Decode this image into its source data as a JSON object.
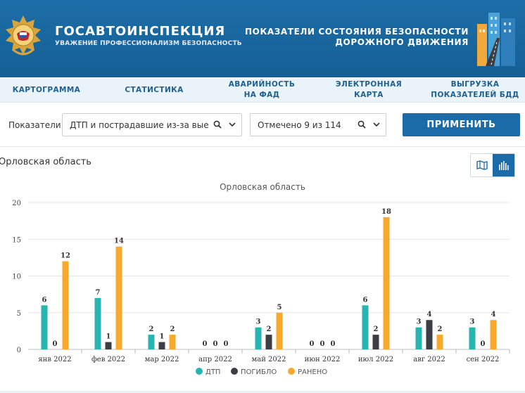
{
  "header": {
    "brand_title": "ГОСАВТОИНСПЕКЦИЯ",
    "brand_subtitle": "УВАЖЕНИЕ ПРОФЕССИОНАЛИЗМ БЕЗОПАСНОСТЬ",
    "right_line1": "ПОКАЗАТЕЛИ СОСТОЯНИЯ БЕЗОПАСНОСТИ",
    "right_line2": "ДОРОЖНОГО ДВИЖЕНИЯ"
  },
  "nav": {
    "items": [
      {
        "line1": "КАРТОГРАММА",
        "line2": ""
      },
      {
        "line1": "СТАТИСТИКА",
        "line2": ""
      },
      {
        "line1": "АВАРИЙНОСТЬ",
        "line2": "НА ФАД"
      },
      {
        "line1": "ЭЛЕКТРОННАЯ",
        "line2": "КАРТА"
      },
      {
        "line1": "ВЫГРУЗКА",
        "line2": "ПОКАЗАТЕЛЕЙ БДД"
      }
    ]
  },
  "filters": {
    "label": "Показатели",
    "indicator_value": "ДТП и пострадавшие из-за выезд...",
    "marked_value": "Отмечено 9 из 114",
    "apply_label": "ПРИМЕНИТЬ"
  },
  "region_label": "Орловская область",
  "colors": {
    "header_bg": "#1a679f",
    "accent": "#1a6ba8",
    "dtp": "#26b5b0",
    "killed": "#3b3f45",
    "injured": "#f8a82a"
  },
  "chart_data": {
    "type": "bar",
    "title": "Орловская область",
    "categories": [
      "янв 2022",
      "фев 2022",
      "мар 2022",
      "апр 2022",
      "май 2022",
      "июн 2022",
      "июл 2022",
      "авг 2022",
      "сен 2022"
    ],
    "series": [
      {
        "name": "ДТП",
        "values": [
          6,
          7,
          2,
          0,
          3,
          0,
          6,
          3,
          3
        ]
      },
      {
        "name": "ПОГИБЛО",
        "values": [
          0,
          1,
          1,
          0,
          2,
          0,
          2,
          4,
          0
        ]
      },
      {
        "name": "РАНЕНО",
        "values": [
          12,
          14,
          2,
          0,
          5,
          0,
          18,
          2,
          4
        ]
      }
    ],
    "yticks": [
      "0",
      "5",
      "10",
      "15",
      "20"
    ],
    "ylim": [
      0,
      20
    ],
    "legend_position": "bottom-center",
    "xlabel": "",
    "ylabel": ""
  }
}
